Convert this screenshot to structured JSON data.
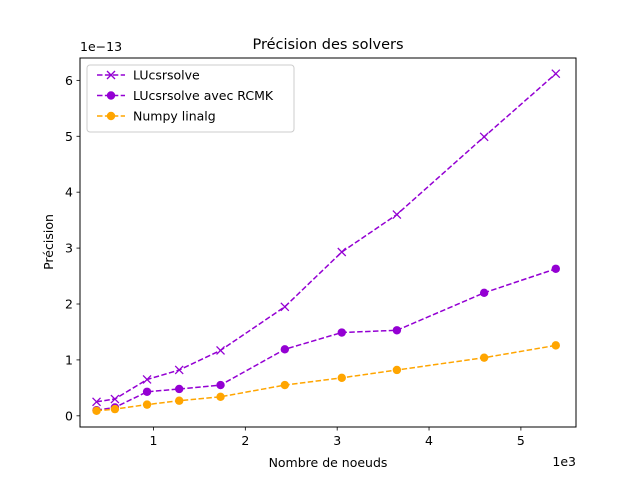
{
  "chart_data": {
    "type": "line",
    "title": "Précision des solvers",
    "xlabel": "Nombre de noeuds",
    "ylabel": "Précision",
    "x_offset_label": "1e3",
    "y_offset_label": "1e−13",
    "xlim": [
      0.2,
      5.6
    ],
    "ylim": [
      -0.2,
      6.4
    ],
    "xticks": [
      1,
      2,
      3,
      4,
      5
    ],
    "yticks": [
      0,
      1,
      2,
      3,
      4,
      5,
      6
    ],
    "grid": false,
    "legend_position": "upper-left",
    "x": [
      0.38,
      0.58,
      0.93,
      1.28,
      1.73,
      2.43,
      3.05,
      3.65,
      4.6,
      5.38
    ],
    "series": [
      {
        "name": "LUcsrsolve",
        "color": "#9400d3",
        "marker": "x",
        "linestyle": "dashed",
        "values": [
          0.25,
          0.3,
          0.65,
          0.82,
          1.17,
          1.95,
          2.93,
          3.6,
          4.99,
          6.12
        ]
      },
      {
        "name": "LUcsrsolve avec RCMK",
        "color": "#9400d3",
        "marker": "circle",
        "linestyle": "dashed",
        "values": [
          0.1,
          0.15,
          0.43,
          0.48,
          0.55,
          1.19,
          1.49,
          1.53,
          2.2,
          2.63
        ]
      },
      {
        "name": "Numpy linalg",
        "color": "#ffa500",
        "marker": "circle",
        "linestyle": "dashed",
        "values": [
          0.09,
          0.12,
          0.2,
          0.27,
          0.34,
          0.55,
          0.68,
          0.82,
          1.04,
          1.26
        ]
      }
    ]
  }
}
